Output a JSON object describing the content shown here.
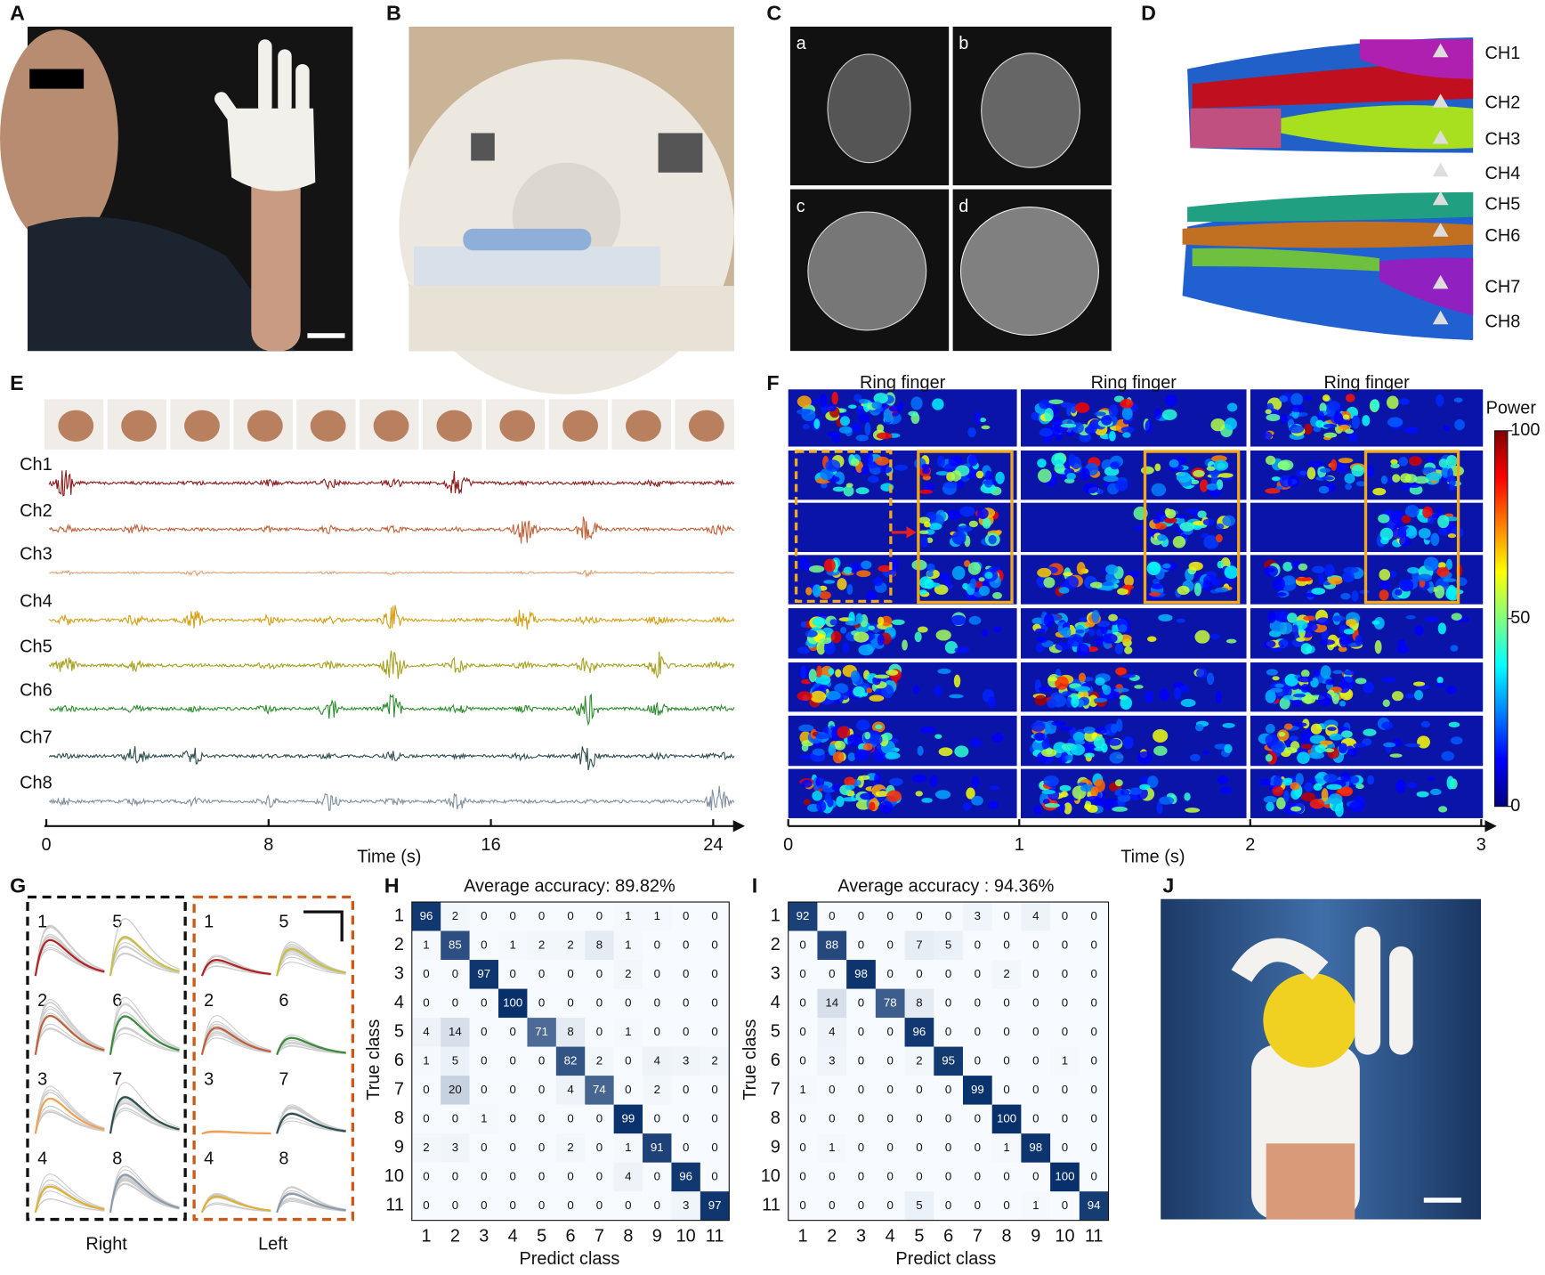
{
  "panel_labels": [
    "A",
    "B",
    "C",
    "D",
    "E",
    "F",
    "G",
    "H",
    "I",
    "J"
  ],
  "mri_labels": [
    "a",
    "b",
    "c",
    "d"
  ],
  "model_channels": [
    "CH1",
    "CH2",
    "CH3",
    "CH4",
    "CH5",
    "CH6",
    "CH7",
    "CH8"
  ],
  "emg": {
    "channels": [
      {
        "name": "Ch1",
        "color": "#8b1a1a"
      },
      {
        "name": "Ch2",
        "color": "#c0623a"
      },
      {
        "name": "Ch3",
        "color": "#e0a070"
      },
      {
        "name": "Ch4",
        "color": "#d4a017"
      },
      {
        "name": "Ch5",
        "color": "#a8a020"
      },
      {
        "name": "Ch6",
        "color": "#2e8b2e"
      },
      {
        "name": "Ch7",
        "color": "#2f4f4f"
      },
      {
        "name": "Ch8",
        "color": "#8090a0"
      }
    ],
    "xlim": [
      0,
      25
    ],
    "xticks": [
      0,
      8,
      16,
      24
    ],
    "x_label": "Time (s)"
  },
  "spectrogram": {
    "titles": [
      "Ring finger",
      "Ring finger",
      "Ring finger"
    ],
    "colorbar_title": "Power",
    "colorbar_ticks": [
      100,
      50,
      0
    ],
    "xlim": [
      0,
      3.05
    ],
    "xticks": [
      0,
      1,
      2,
      3
    ],
    "x_label": "Time (s)"
  },
  "templates": {
    "groups": [
      {
        "name": "Right",
        "labels": [
          "1",
          "5",
          "2",
          "6",
          "3",
          "7",
          "4",
          "8"
        ]
      },
      {
        "name": "Left",
        "labels": [
          "1",
          "5",
          "2",
          "6",
          "3",
          "7",
          "4",
          "8"
        ]
      }
    ],
    "colors": [
      "#b22222",
      "#c8c040",
      "#c0603a",
      "#3a8a3a",
      "#f0a050",
      "#2f4f4f",
      "#e0b030",
      "#8a9aaa"
    ]
  },
  "confusion": [
    {
      "title": "Average accuracy: 89.82%",
      "y_label": "True class",
      "x_label": "Predict class",
      "classes": [
        1,
        2,
        3,
        4,
        5,
        6,
        7,
        8,
        9,
        10,
        11
      ],
      "matrix": [
        [
          96,
          2,
          0,
          0,
          0,
          0,
          0,
          1,
          1,
          0,
          0
        ],
        [
          1,
          85,
          0,
          1,
          2,
          2,
          8,
          1,
          0,
          0,
          0
        ],
        [
          0,
          0,
          97,
          0,
          0,
          0,
          0,
          2,
          0,
          0,
          0
        ],
        [
          0,
          0,
          0,
          100,
          0,
          0,
          0,
          0,
          0,
          0,
          0
        ],
        [
          4,
          14,
          0,
          0,
          71,
          8,
          0,
          1,
          0,
          0,
          0
        ],
        [
          1,
          5,
          0,
          0,
          0,
          82,
          2,
          0,
          4,
          3,
          2
        ],
        [
          0,
          20,
          0,
          0,
          0,
          4,
          74,
          0,
          2,
          0,
          0
        ],
        [
          0,
          0,
          1,
          0,
          0,
          0,
          0,
          99,
          0,
          0,
          0
        ],
        [
          2,
          3,
          0,
          0,
          0,
          2,
          0,
          1,
          91,
          0,
          0
        ],
        [
          0,
          0,
          0,
          0,
          0,
          0,
          0,
          4,
          0,
          96,
          0
        ],
        [
          0,
          0,
          0,
          0,
          0,
          0,
          0,
          0,
          0,
          3,
          97
        ]
      ]
    },
    {
      "title": "Average accuracy : 94.36%",
      "y_label": "True class",
      "x_label": "Predict class",
      "classes": [
        1,
        2,
        3,
        4,
        5,
        6,
        7,
        8,
        9,
        10,
        11
      ],
      "matrix": [
        [
          92,
          0,
          0,
          0,
          0,
          0,
          3,
          0,
          4,
          0,
          0
        ],
        [
          0,
          88,
          0,
          0,
          7,
          5,
          0,
          0,
          0,
          0,
          0
        ],
        [
          0,
          0,
          98,
          0,
          0,
          0,
          0,
          2,
          0,
          0,
          0
        ],
        [
          0,
          14,
          0,
          78,
          8,
          0,
          0,
          0,
          0,
          0,
          0
        ],
        [
          0,
          4,
          0,
          0,
          96,
          0,
          0,
          0,
          0,
          0,
          0
        ],
        [
          0,
          3,
          0,
          0,
          2,
          95,
          0,
          0,
          0,
          1,
          0
        ],
        [
          1,
          0,
          0,
          0,
          0,
          0,
          99,
          0,
          0,
          0,
          0
        ],
        [
          0,
          0,
          0,
          0,
          0,
          0,
          0,
          100,
          0,
          0,
          0
        ],
        [
          0,
          1,
          0,
          0,
          0,
          0,
          0,
          1,
          98,
          0,
          0
        ],
        [
          0,
          0,
          0,
          0,
          0,
          0,
          0,
          0,
          0,
          100,
          0
        ],
        [
          0,
          0,
          0,
          0,
          5,
          0,
          0,
          0,
          1,
          0,
          94
        ]
      ]
    }
  ]
}
